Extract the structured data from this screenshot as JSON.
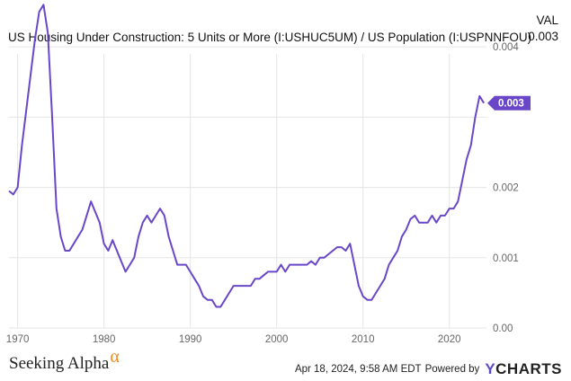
{
  "header": {
    "title": "US Housing Under Construction: 5 Units or More (I:USHUC5UM) / US Population (I:USPNNFOU)",
    "val_label": "VAL",
    "val_value": "0.003"
  },
  "footer": {
    "brand": "Seeking Alpha",
    "brand_symbol": "α",
    "timestamp": "Apr 18, 2024, 9:58 AM EDT",
    "powered_by": "Powered by",
    "ycharts_y": "Y",
    "ycharts_rest": "CHARTS"
  },
  "colors": {
    "line": "#6a47c9",
    "grid": "#e5e5e5",
    "accent": "#6a47c9"
  },
  "chart_data": {
    "type": "line",
    "title": "US Housing Under Construction: 5 Units or More (I:USHUC5UM) / US Population (I:USPNNFOU)",
    "xlabel": "",
    "ylabel": "",
    "xlim": [
      1969,
      2024.3
    ],
    "ylim": [
      0,
      0.0039
    ],
    "x_ticks": [
      1970,
      1980,
      1990,
      2000,
      2010,
      2020
    ],
    "x_tick_labels": [
      "1970",
      "1980",
      "1990",
      "2000",
      "2010",
      "2020"
    ],
    "y_ticks": [
      0,
      0.001,
      0.002,
      0.003,
      0.004
    ],
    "y_tick_labels": [
      "0.00",
      "0.001",
      "0.002",
      "",
      "0.004"
    ],
    "grid": true,
    "last_value_label": "0.003",
    "series": [
      {
        "x": [
          1969,
          1969.5,
          1970,
          1970.5,
          1971,
          1971.5,
          1972,
          1972.5,
          1973,
          1973.5,
          1974,
          1974.5,
          1975,
          1975.5,
          1976,
          1976.5,
          1977,
          1977.5,
          1978,
          1978.5,
          1979,
          1979.5,
          1980,
          1980.5,
          1981,
          1981.5,
          1982,
          1982.5,
          1983,
          1983.5,
          1984,
          1984.5,
          1985,
          1985.5,
          1986,
          1986.5,
          1987,
          1987.5,
          1988,
          1988.5,
          1989,
          1989.5,
          1990,
          1990.5,
          1991,
          1991.5,
          1992,
          1992.5,
          1993,
          1993.5,
          1994,
          1994.5,
          1995,
          1995.5,
          1996,
          1996.5,
          1997,
          1997.5,
          1998,
          1998.5,
          1999,
          1999.5,
          2000,
          2000.5,
          2001,
          2001.5,
          2002,
          2002.5,
          2003,
          2003.5,
          2004,
          2004.5,
          2005,
          2005.5,
          2006,
          2006.5,
          2007,
          2007.5,
          2008,
          2008.5,
          2009,
          2009.5,
          2010,
          2010.5,
          2011,
          2011.5,
          2012,
          2012.5,
          2013,
          2013.5,
          2014,
          2014.5,
          2015,
          2015.5,
          2016,
          2016.5,
          2017,
          2017.5,
          2018,
          2018.5,
          2019,
          2019.5,
          2020,
          2020.5,
          2021,
          2021.5,
          2022,
          2022.5,
          2023,
          2023.5,
          2024
        ],
        "y": [
          0.00195,
          0.0019,
          0.002,
          0.0026,
          0.0031,
          0.0036,
          0.0041,
          0.0045,
          0.0046,
          0.0042,
          0.003,
          0.0017,
          0.0013,
          0.0011,
          0.0011,
          0.0012,
          0.0013,
          0.0014,
          0.0016,
          0.0018,
          0.00165,
          0.0015,
          0.0012,
          0.0011,
          0.00125,
          0.0011,
          0.00095,
          0.0008,
          0.0009,
          0.001,
          0.0013,
          0.0015,
          0.0016,
          0.0015,
          0.0016,
          0.0017,
          0.0016,
          0.0013,
          0.0011,
          0.0009,
          0.0009,
          0.0009,
          0.0008,
          0.0007,
          0.0006,
          0.00045,
          0.0004,
          0.0004,
          0.0003,
          0.0003,
          0.0004,
          0.0005,
          0.0006,
          0.0006,
          0.0006,
          0.0006,
          0.0006,
          0.0007,
          0.0007,
          0.00075,
          0.0008,
          0.0008,
          0.0008,
          0.0009,
          0.0008,
          0.0009,
          0.0009,
          0.0009,
          0.0009,
          0.0009,
          0.00095,
          0.0009,
          0.001,
          0.001,
          0.00105,
          0.0011,
          0.00115,
          0.00115,
          0.0011,
          0.0012,
          0.0009,
          0.0006,
          0.00045,
          0.0004,
          0.0004,
          0.0005,
          0.0006,
          0.0007,
          0.0009,
          0.001,
          0.0011,
          0.0013,
          0.0014,
          0.00155,
          0.0016,
          0.0015,
          0.0015,
          0.0015,
          0.0016,
          0.0015,
          0.0016,
          0.0016,
          0.0017,
          0.0017,
          0.0018,
          0.0021,
          0.0024,
          0.0026,
          0.003,
          0.0033,
          0.0032
        ]
      }
    ]
  }
}
